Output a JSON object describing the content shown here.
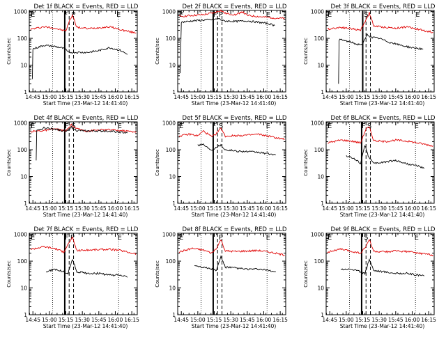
{
  "figure": {
    "background": "#ffffff",
    "axis_color": "#000000",
    "events_color": "#000000",
    "lld_color": "#e00000"
  },
  "chart_data": [
    {
      "type": "line",
      "title": "Det 1f BLACK = Events, RED = LLD",
      "xlabel": "Start Time (23-Mar-12 14:41:40)",
      "ylabel": "Counts/sec",
      "x_ticks": [
        "14:45",
        "15:00",
        "15:15",
        "15:30",
        "15:45",
        "16:00",
        "16:15"
      ],
      "y_ticks": [
        "1",
        "10",
        "100",
        "1000"
      ],
      "xlim": [
        -3.3,
        95
      ],
      "ylim": [
        1,
        1100
      ],
      "y_scale": "log",
      "flags": [
        {
          "label": "E",
          "x": -2
        },
        {
          "label": "F",
          "x": 28
        },
        {
          "label": "P",
          "x": 35
        },
        {
          "label": "E",
          "x": 76
        }
      ],
      "markers": {
        "dotted": [
          18,
          78
        ],
        "solid": [
          29
        ],
        "dashed": [
          33,
          37
        ]
      },
      "series": [
        {
          "role": "lld",
          "x": [
            -2,
            10,
            20,
            25,
            30,
            33,
            36,
            40,
            50,
            60,
            70,
            80,
            90,
            94
          ],
          "values": [
            220,
            270,
            240,
            210,
            190,
            420,
            750,
            260,
            230,
            250,
            270,
            210,
            170,
            160
          ]
        },
        {
          "role": "events",
          "x": [
            -0.5,
            0,
            10,
            20,
            25,
            30,
            32,
            50,
            60,
            70,
            80,
            86
          ],
          "values": [
            3,
            40,
            55,
            50,
            45,
            40,
            30,
            30,
            35,
            45,
            35,
            25
          ]
        }
      ]
    },
    {
      "type": "line",
      "title": "Det 2f BLACK = Events, RED = LLD",
      "xlabel": "Start Time (23-Mar-12 14:41:40)",
      "ylabel": "Counts/sec",
      "x_ticks": [
        "14:45",
        "15:00",
        "15:15",
        "15:30",
        "15:45",
        "16:00",
        "16:15"
      ],
      "y_ticks": [
        "1",
        "10",
        "100",
        "1000"
      ],
      "xlim": [
        -3.3,
        95
      ],
      "ylim": [
        1,
        1100
      ],
      "y_scale": "log",
      "flags": [
        {
          "label": "E",
          "x": -2
        },
        {
          "label": "F",
          "x": 29
        },
        {
          "label": "P",
          "x": 34
        },
        {
          "label": "E",
          "x": 77
        }
      ],
      "markers": {
        "dotted": [
          18,
          78
        ],
        "solid": [
          29
        ],
        "dashed": [
          33,
          37
        ]
      },
      "series": [
        {
          "role": "lld",
          "x": [
            -2,
            10,
            20,
            30,
            33,
            36,
            40,
            50,
            55,
            60,
            70,
            80,
            90,
            94
          ],
          "values": [
            650,
            720,
            760,
            900,
            1000,
            1100,
            850,
            760,
            1000,
            720,
            650,
            600,
            560,
            550
          ]
        },
        {
          "role": "events",
          "x": [
            -1,
            0,
            10,
            20,
            30,
            34,
            38,
            50,
            60,
            70,
            80,
            85
          ],
          "values": [
            5,
            400,
            450,
            480,
            500,
            550,
            450,
            430,
            450,
            400,
            350,
            300
          ]
        }
      ]
    },
    {
      "type": "line",
      "title": "Det 3f BLACK = Events, RED = LLD",
      "xlabel": "Start Time (23-Mar-12 14:41:40)",
      "ylabel": "Counts/sec",
      "x_ticks": [
        "14:45",
        "15:00",
        "15:15",
        "15:30",
        "15:45",
        "16:00",
        "16:15"
      ],
      "y_ticks": [
        "1",
        "10",
        "100",
        "1000"
      ],
      "xlim": [
        -3.3,
        95
      ],
      "ylim": [
        1,
        1100
      ],
      "y_scale": "log",
      "flags": [
        {
          "label": "E",
          "x": -2
        },
        {
          "label": "S",
          "x": 31
        },
        {
          "label": "E",
          "x": 78
        }
      ],
      "markers": {
        "dotted": [
          18,
          78
        ],
        "solid": [
          30
        ],
        "dashed": [
          33,
          37
        ]
      },
      "series": [
        {
          "role": "lld",
          "x": [
            -2,
            10,
            20,
            28,
            33,
            36,
            40,
            50,
            60,
            70,
            80,
            90,
            94
          ],
          "values": [
            220,
            260,
            230,
            200,
            500,
            900,
            290,
            260,
            240,
            270,
            220,
            180,
            170
          ]
        },
        {
          "role": "events",
          "x": [
            8,
            8.5,
            15,
            20,
            25,
            30,
            34,
            38,
            45,
            55,
            65,
            75,
            85
          ],
          "values": [
            2,
            90,
            80,
            70,
            60,
            60,
            140,
            110,
            100,
            70,
            55,
            45,
            40
          ]
        }
      ]
    },
    {
      "type": "line",
      "title": "Det 4f BLACK = Events, RED = LLD",
      "xlabel": "Start Time (23-Mar-12 14:41:40)",
      "ylabel": "Counts/sec",
      "x_ticks": [
        "14:45",
        "15:00",
        "15:15",
        "15:30",
        "15:45",
        "16:00",
        "16:15"
      ],
      "y_ticks": [
        "1",
        "10",
        "100",
        "1000"
      ],
      "xlim": [
        -3.3,
        95
      ],
      "ylim": [
        1,
        1100
      ],
      "y_scale": "log",
      "flags": [
        {
          "label": "E",
          "x": -2
        },
        {
          "label": "F",
          "x": 29
        },
        {
          "label": "S",
          "x": 35
        },
        {
          "label": "E",
          "x": 77
        }
      ],
      "markers": {
        "dotted": [
          18,
          78
        ],
        "solid": [
          29
        ],
        "dashed": [
          33,
          37
        ]
      },
      "series": [
        {
          "role": "lld",
          "x": [
            -2,
            10,
            20,
            30,
            35,
            40,
            50,
            60,
            70,
            80,
            90,
            94
          ],
          "values": [
            480,
            520,
            600,
            500,
            850,
            600,
            500,
            550,
            560,
            520,
            480,
            470
          ]
        },
        {
          "role": "events",
          "x": [
            3,
            3.5,
            10,
            20,
            30,
            35,
            40,
            50,
            60,
            70,
            80,
            86
          ],
          "values": [
            40,
            500,
            650,
            600,
            480,
            700,
            520,
            500,
            500,
            500,
            450,
            420
          ]
        }
      ]
    },
    {
      "type": "line",
      "title": "Det 5f BLACK = Events, RED = LLD",
      "xlabel": "Start Time (23-Mar-12 14:41:40)",
      "ylabel": "Counts/sec",
      "x_ticks": [
        "14:45",
        "15:00",
        "15:15",
        "15:30",
        "15:45",
        "16:00",
        "16:15"
      ],
      "y_ticks": [
        "1",
        "10",
        "100",
        "1000"
      ],
      "xlim": [
        -3.3,
        95
      ],
      "ylim": [
        1,
        1100
      ],
      "y_scale": "log",
      "flags": [
        {
          "label": "E",
          "x": -2
        },
        {
          "label": "F",
          "x": 28
        },
        {
          "label": "S",
          "x": 34
        },
        {
          "label": "E",
          "x": 77
        }
      ],
      "markers": {
        "dotted": [
          18,
          78
        ],
        "solid": [
          29
        ],
        "dashed": [
          33,
          37
        ]
      },
      "series": [
        {
          "role": "lld",
          "x": [
            -2,
            8,
            15,
            20,
            28,
            33,
            36,
            40,
            50,
            60,
            70,
            80,
            90,
            94
          ],
          "values": [
            330,
            380,
            330,
            500,
            300,
            450,
            650,
            320,
            340,
            350,
            380,
            320,
            260,
            250
          ]
        },
        {
          "role": "events",
          "x": [
            15,
            20,
            25,
            28,
            32,
            36,
            40,
            50,
            60,
            70,
            80,
            86
          ],
          "values": [
            150,
            160,
            110,
            100,
            130,
            150,
            100,
            90,
            85,
            80,
            70,
            65
          ]
        }
      ]
    },
    {
      "type": "line",
      "title": "Det 6f BLACK = Events, RED = LLD",
      "xlabel": "Start Time (23-Mar-12 14:41:40)",
      "ylabel": "Counts/sec",
      "x_ticks": [
        "14:45",
        "15:00",
        "15:15",
        "15:30",
        "15:45",
        "16:00",
        "16:15"
      ],
      "y_ticks": [
        "1",
        "10",
        "100",
        "1000"
      ],
      "xlim": [
        -3.3,
        95
      ],
      "ylim": [
        1,
        1100
      ],
      "y_scale": "log",
      "flags": [
        {
          "label": "E",
          "x": -2
        },
        {
          "label": "F",
          "x": 29
        },
        {
          "label": "S",
          "x": 34
        },
        {
          "label": "E",
          "x": 77
        }
      ],
      "markers": {
        "dotted": [
          18,
          78
        ],
        "solid": [
          29
        ],
        "dashed": [
          33,
          37
        ]
      },
      "series": [
        {
          "role": "lld",
          "x": [
            -2,
            10,
            20,
            28,
            33,
            36,
            40,
            50,
            60,
            70,
            80,
            90,
            94
          ],
          "values": [
            180,
            230,
            210,
            180,
            600,
            700,
            220,
            200,
            230,
            210,
            180,
            150,
            140
          ]
        },
        {
          "role": "events",
          "x": [
            15,
            20,
            25,
            28,
            30,
            32,
            35,
            40,
            50,
            60,
            70,
            80,
            86
          ],
          "values": [
            60,
            50,
            40,
            30,
            70,
            150,
            60,
            30,
            35,
            40,
            30,
            25,
            20
          ]
        }
      ]
    },
    {
      "type": "line",
      "title": "Det 7f BLACK = Events, RED = LLD",
      "xlabel": "Start Time (23-Mar-12 14:41:40)",
      "ylabel": "Counts/sec",
      "x_ticks": [
        "14:45",
        "15:00",
        "15:15",
        "15:30",
        "15:45",
        "16:00",
        "16:15"
      ],
      "y_ticks": [
        "1",
        "10",
        "100",
        "1000"
      ],
      "xlim": [
        -3.3,
        95
      ],
      "ylim": [
        1,
        1100
      ],
      "y_scale": "log",
      "flags": [
        {
          "label": "E",
          "x": -2
        },
        {
          "label": "F",
          "x": 29
        },
        {
          "label": "P",
          "x": 34
        },
        {
          "label": "E",
          "x": 77
        }
      ],
      "markers": {
        "dotted": [
          18,
          78
        ],
        "solid": [
          29
        ],
        "dashed": [
          33,
          37
        ]
      },
      "series": [
        {
          "role": "lld",
          "x": [
            -2,
            10,
            20,
            28,
            33,
            36,
            40,
            50,
            60,
            70,
            80,
            90,
            94
          ],
          "values": [
            280,
            350,
            300,
            220,
            500,
            750,
            250,
            260,
            270,
            280,
            250,
            200,
            190
          ]
        },
        {
          "role": "events",
          "x": [
            12,
            20,
            28,
            32,
            36,
            40,
            50,
            60,
            70,
            80,
            86
          ],
          "values": [
            40,
            50,
            40,
            35,
            120,
            40,
            35,
            35,
            30,
            30,
            25
          ]
        }
      ]
    },
    {
      "type": "line",
      "title": "Det 8f BLACK = Events, RED = LLD",
      "xlabel": "Start Time (23-Mar-12 14:41:40)",
      "ylabel": "Counts/sec",
      "x_ticks": [
        "14:45",
        "15:00",
        "15:15",
        "15:30",
        "15:45",
        "16:00",
        "16:15"
      ],
      "y_ticks": [
        "1",
        "10",
        "100",
        "1000"
      ],
      "xlim": [
        -3.3,
        95
      ],
      "ylim": [
        1,
        1100
      ],
      "y_scale": "log",
      "flags": [
        {
          "label": "E",
          "x": -2
        },
        {
          "label": "P",
          "x": 34
        },
        {
          "label": "E",
          "x": 77
        }
      ],
      "markers": {
        "dotted": [
          18,
          78
        ],
        "solid": [
          29
        ],
        "dashed": [
          33,
          37
        ]
      },
      "series": [
        {
          "role": "lld",
          "x": [
            -2,
            10,
            20,
            28,
            33,
            36,
            40,
            50,
            60,
            70,
            80,
            90,
            94
          ],
          "values": [
            220,
            300,
            260,
            200,
            350,
            650,
            240,
            230,
            240,
            250,
            220,
            180,
            170
          ]
        },
        {
          "role": "events",
          "x": [
            12,
            20,
            28,
            32,
            36,
            40,
            50,
            60,
            70,
            80,
            86
          ],
          "values": [
            70,
            60,
            50,
            45,
            150,
            60,
            55,
            50,
            50,
            45,
            40
          ]
        }
      ]
    },
    {
      "type": "line",
      "title": "Det 9f BLACK = Events, RED = LLD",
      "xlabel": "Start Time (23-Mar-12 14:41:40)",
      "ylabel": "Counts/sec",
      "x_ticks": [
        "14:45",
        "15:00",
        "15:15",
        "15:30",
        "15:45",
        "16:00",
        "16:15"
      ],
      "y_ticks": [
        "1",
        "10",
        "100",
        "1000"
      ],
      "xlim": [
        -3.3,
        95
      ],
      "ylim": [
        1,
        1100
      ],
      "y_scale": "log",
      "flags": [
        {
          "label": "E",
          "x": -2
        },
        {
          "label": "S",
          "x": 31
        },
        {
          "label": "E",
          "x": 77
        }
      ],
      "markers": {
        "dotted": [
          18,
          78
        ],
        "solid": [
          29
        ],
        "dashed": [
          33,
          37
        ]
      },
      "series": [
        {
          "role": "lld",
          "x": [
            -2,
            10,
            20,
            28,
            33,
            36,
            40,
            50,
            60,
            70,
            80,
            90,
            94
          ],
          "values": [
            220,
            280,
            230,
            200,
            350,
            650,
            230,
            220,
            240,
            230,
            200,
            180,
            170
          ]
        },
        {
          "role": "events",
          "x": [
            10,
            20,
            28,
            32,
            36,
            40,
            50,
            60,
            70,
            80,
            86
          ],
          "values": [
            50,
            50,
            40,
            35,
            120,
            45,
            40,
            35,
            35,
            30,
            28
          ]
        }
      ]
    }
  ]
}
